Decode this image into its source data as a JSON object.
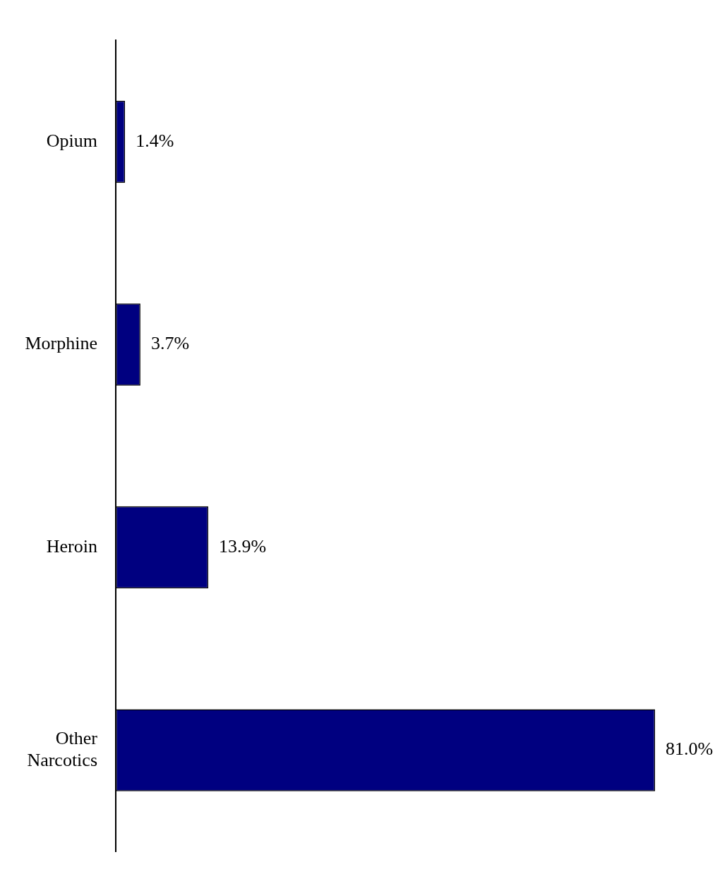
{
  "chart_data": {
    "type": "bar",
    "orientation": "horizontal",
    "categories": [
      "Opium",
      "Morphine",
      "Heroin",
      "Other Narcotics"
    ],
    "values": [
      1.4,
      3.7,
      13.9,
      81.0
    ],
    "value_labels": [
      "1.4%",
      "3.7%",
      "13.9%",
      "81.0%"
    ],
    "color": "#000080",
    "tick_labels": "y",
    "legend": false
  }
}
